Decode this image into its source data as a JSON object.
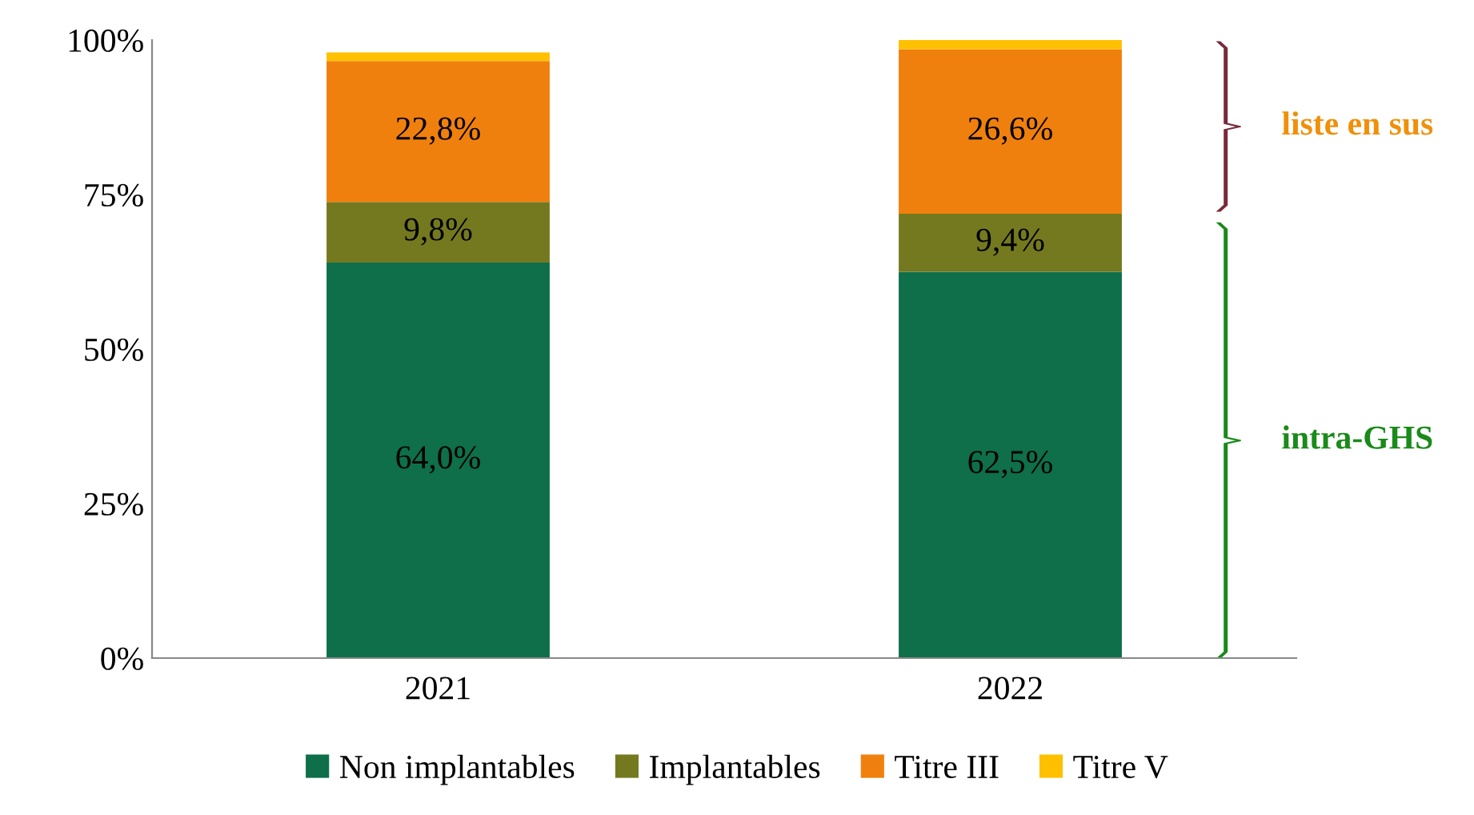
{
  "chart_data": {
    "type": "bar",
    "stacked": true,
    "categories": [
      "2021",
      "2022"
    ],
    "series": [
      {
        "name": "Non implantables",
        "color": "#0e6f4a",
        "values": [
          64.0,
          62.5
        ],
        "value_labels": [
          "64,0%",
          "62,5%"
        ]
      },
      {
        "name": "Implantables",
        "color": "#74791f",
        "values": [
          9.8,
          9.4
        ],
        "value_labels": [
          "9,8%",
          "9,4%"
        ]
      },
      {
        "name": "Titre III",
        "color": "#f0800d",
        "values": [
          22.8,
          26.6
        ],
        "value_labels": [
          "22,8%",
          "26,6%"
        ]
      },
      {
        "name": "Titre V",
        "color": "#ffc000",
        "values": [
          1.4,
          1.5
        ],
        "value_labels": [
          null,
          null
        ]
      }
    ],
    "ylim": [
      0,
      100
    ],
    "yticks": [
      {
        "value": 0,
        "label": "0%"
      },
      {
        "value": 25,
        "label": "25%"
      },
      {
        "value": 50,
        "label": "50%"
      },
      {
        "value": 75,
        "label": "75%"
      },
      {
        "value": 100,
        "label": "100%"
      }
    ],
    "annotations": [
      "liste en sus",
      "intra-GHS"
    ],
    "grid": false,
    "legend": "bottom"
  }
}
